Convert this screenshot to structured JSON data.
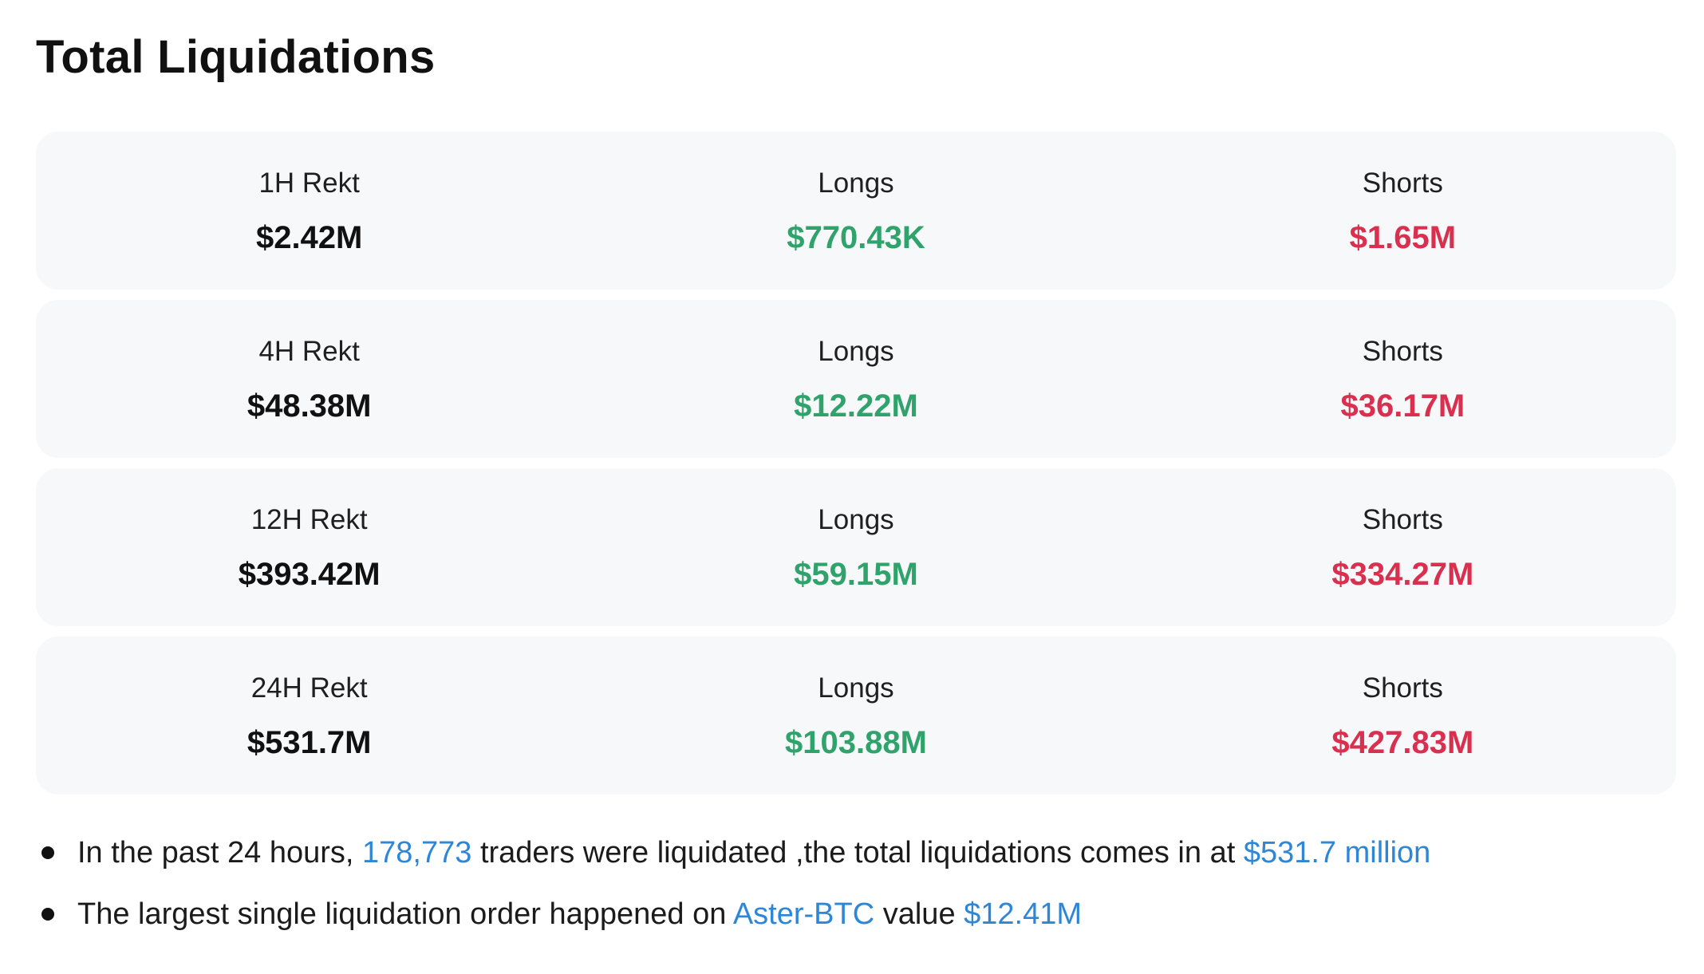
{
  "title": "Total Liquidations",
  "rows": [
    {
      "period_label": "1H Rekt",
      "total": "$2.42M",
      "longs_label": "Longs",
      "longs": "$770.43K",
      "shorts_label": "Shorts",
      "shorts": "$1.65M"
    },
    {
      "period_label": "4H Rekt",
      "total": "$48.38M",
      "longs_label": "Longs",
      "longs": "$12.22M",
      "shorts_label": "Shorts",
      "shorts": "$36.17M"
    },
    {
      "period_label": "12H Rekt",
      "total": "$393.42M",
      "longs_label": "Longs",
      "longs": "$59.15M",
      "shorts_label": "Shorts",
      "shorts": "$334.27M"
    },
    {
      "period_label": "24H Rekt",
      "total": "$531.7M",
      "longs_label": "Longs",
      "longs": "$103.88M",
      "shorts_label": "Shorts",
      "shorts": "$427.83M"
    }
  ],
  "notes": {
    "first": {
      "prefix": "In the past 24 hours, ",
      "traders_count": "178,773",
      "middle": " traders were liquidated ,the total liquidations comes in at ",
      "total_value": "$531.7 million"
    },
    "second": {
      "prefix": "The largest single liquidation order happened on ",
      "pair": "Aster-BTC",
      "middle": " value ",
      "order_value": "$12.41M"
    }
  },
  "colors": {
    "longs": "#2fa36b",
    "shorts": "#d9304f",
    "link": "#2d86d6",
    "card_background": "#f7f8fa"
  }
}
